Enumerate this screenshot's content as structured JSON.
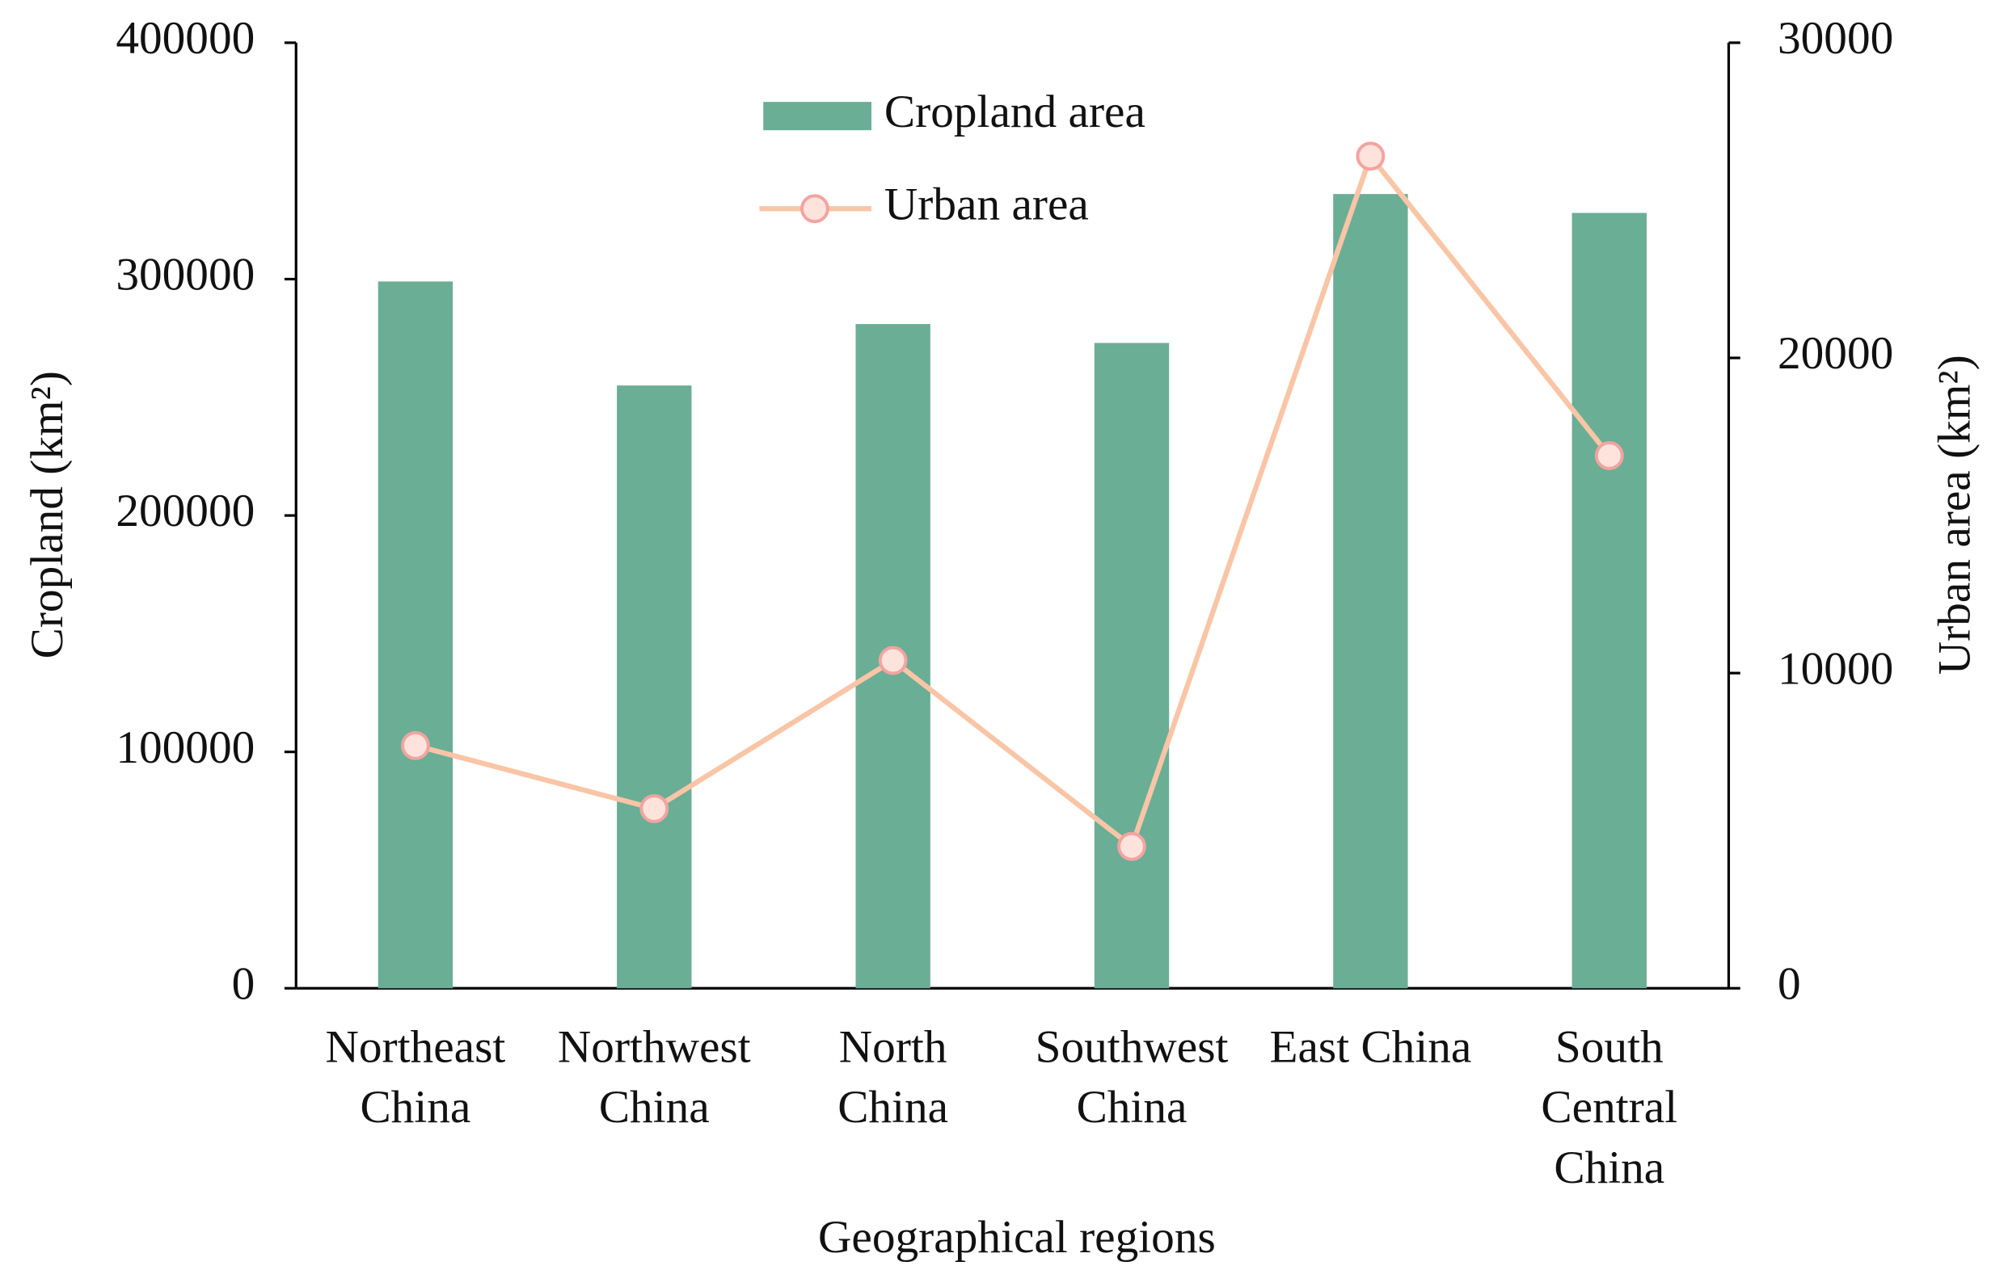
{
  "chart_data": {
    "type": "combo",
    "x_label": "Geographical regions",
    "y_label": "Cropland (km²)",
    "y2_label": "Urban area (km²)",
    "categories": [
      [
        "Northeast",
        "China"
      ],
      [
        "Northwest",
        "China"
      ],
      [
        "North",
        "China"
      ],
      [
        "Southwest",
        "China"
      ],
      [
        "East China"
      ],
      [
        "South",
        "Central",
        "China"
      ]
    ],
    "series": [
      {
        "name": "Cropland area",
        "type": "bar",
        "color": "#6aae96",
        "values": [
          299000,
          255000,
          281000,
          273000,
          336000,
          328000
        ]
      },
      {
        "name": "Urban area",
        "type": "line",
        "axis": "y2",
        "color": "#f9c5a6",
        "marker_fill": "#fde3dc",
        "marker_stroke": "#f2a4a0",
        "values": [
          7700,
          5700,
          10400,
          4500,
          26400,
          16900
        ]
      }
    ],
    "ylim": [
      0,
      400000
    ],
    "yticks": [
      0,
      100000,
      200000,
      300000,
      400000
    ],
    "y2lim": [
      0,
      30000
    ],
    "y2ticks": [
      0,
      10000,
      20000,
      30000
    ],
    "grid": false,
    "legend": "upper center"
  }
}
